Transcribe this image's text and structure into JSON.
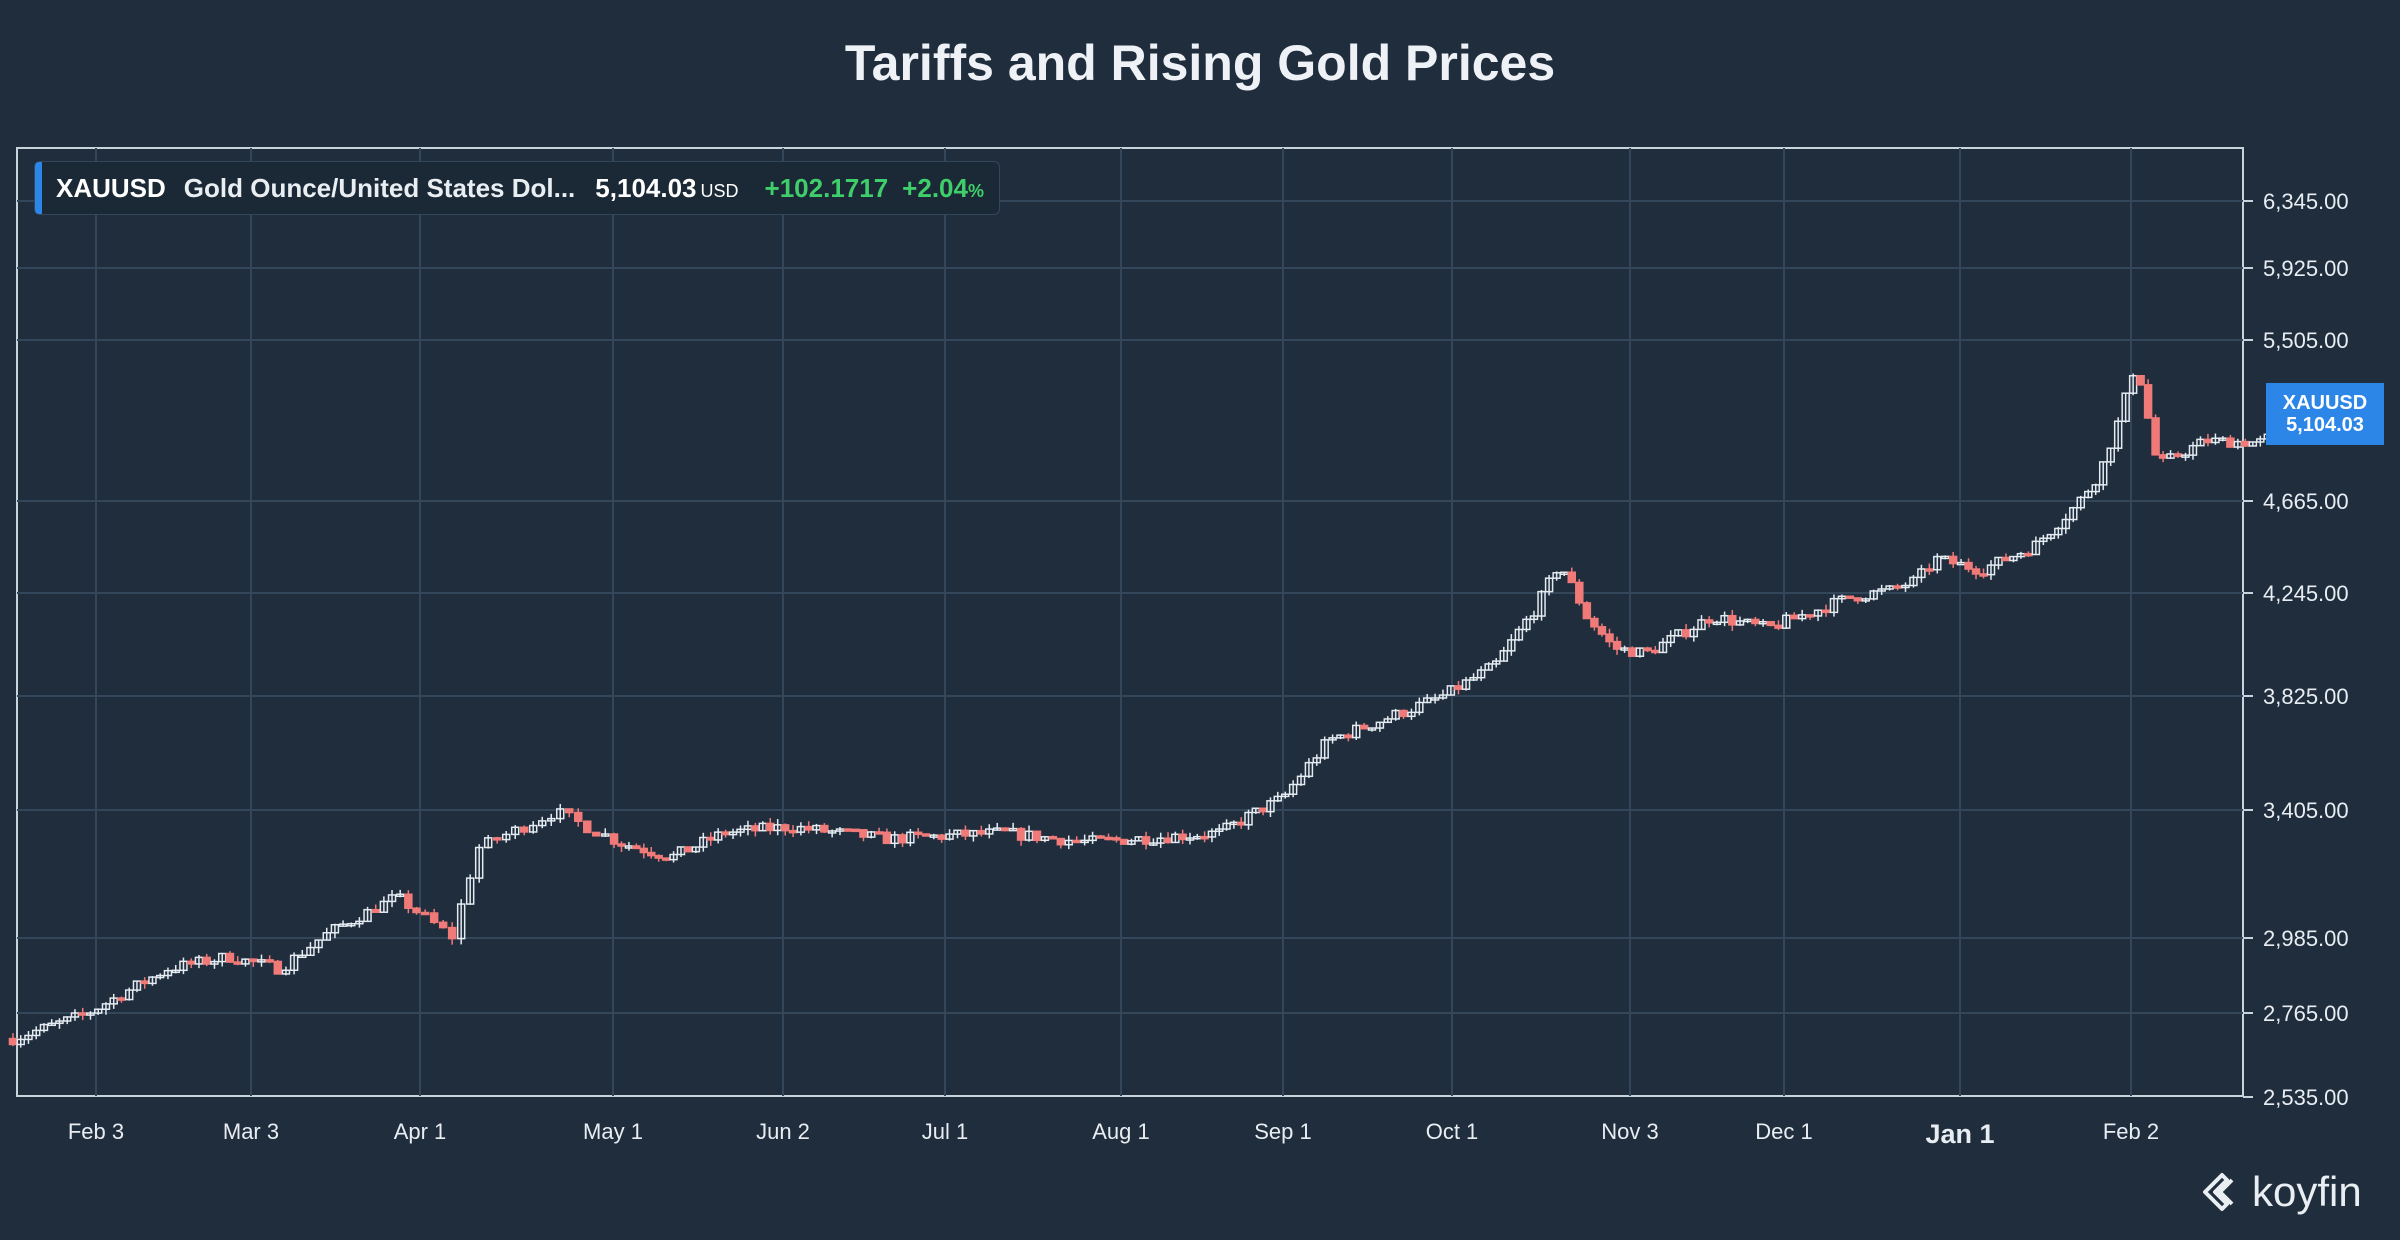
{
  "title": "Tariffs and Rising Gold Prices",
  "legend": {
    "symbol": "XAUUSD",
    "name": "Gold Ounce/United States Dol...",
    "price": "5,104.03",
    "currency": "USD",
    "change": "+102.1717",
    "change_pct": "+2.04",
    "change_pct_unit": "%"
  },
  "price_tag": {
    "symbol": "XAUUSD",
    "value": "5,104.03"
  },
  "brand": {
    "name": "koyfin"
  },
  "colors": {
    "background": "#1f2d3d",
    "grid": "#34465a",
    "up": "#e4ebf1",
    "down": "#f07a78",
    "accent": "#2c86e8",
    "positive": "#3fcf6a"
  },
  "chart_data": {
    "type": "candlestick",
    "title": "Tariffs and Rising Gold Prices",
    "series_name": "XAUUSD",
    "y_axis_side": "right",
    "y_ticks": [
      2535,
      2765,
      2985,
      3405,
      3825,
      4245,
      4665,
      5505,
      5925,
      6345
    ],
    "y_tick_labels": [
      "2,535.00",
      "2,765.00",
      "2,985.00",
      "3,405.00",
      "3,825.00",
      "4,245.00",
      "4,665.00",
      "5,505.00",
      "5,925.00",
      "6,345.00"
    ],
    "x_tick_labels": [
      "Feb 3",
      "Mar 3",
      "Apr 1",
      "May 1",
      "Jun 2",
      "Jul 1",
      "Aug 1",
      "Sep 1",
      "Oct 1",
      "Nov 3",
      "Dec 1",
      "Jan 1",
      "Feb 2"
    ],
    "x_tick_days": [
      2,
      30,
      59,
      89,
      121,
      150,
      181,
      212,
      242,
      275,
      303,
      334,
      366
    ],
    "x_range_days": [
      -13,
      402
    ],
    "bold_x_labels": [
      "Jan 1"
    ],
    "path_days": [
      -13,
      0,
      15,
      26,
      35,
      44,
      55,
      60,
      64,
      68,
      80,
      90,
      100,
      110,
      122,
      140,
      160,
      175,
      200,
      212,
      220,
      240,
      250,
      258,
      262,
      267,
      272,
      278,
      290,
      300,
      315,
      322,
      326,
      330,
      338,
      348,
      356,
      360,
      364,
      367,
      371,
      380,
      390,
      400
    ],
    "path_values": [
      2695,
      2760,
      2895,
      2930,
      2895,
      3010,
      3120,
      3050,
      2990,
      3280,
      3400,
      3300,
      3250,
      3330,
      3350,
      3310,
      3330,
      3300,
      3330,
      3450,
      3660,
      3820,
      3950,
      4200,
      4380,
      4150,
      4020,
      4000,
      4150,
      4100,
      4230,
      4260,
      4300,
      4400,
      4350,
      4460,
      4650,
      4800,
      5100,
      5400,
      4850,
      4980,
      4970,
      5104.03
    ]
  }
}
